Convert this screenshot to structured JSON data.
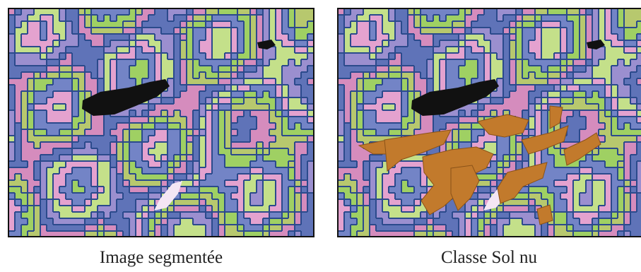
{
  "panels": [
    {
      "caption": "Image segmentée"
    },
    {
      "caption": "Classe Sol nu"
    }
  ]
}
